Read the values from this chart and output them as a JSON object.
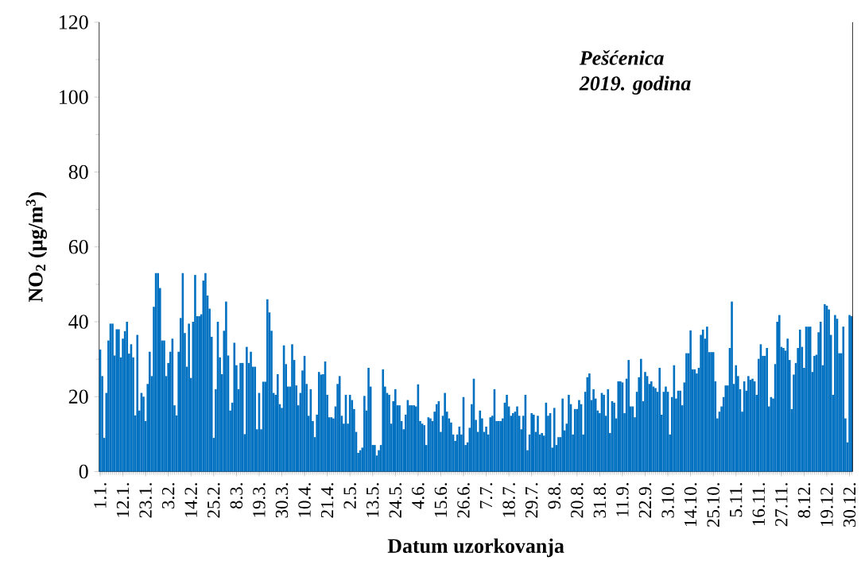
{
  "chart_data": {
    "type": "bar",
    "ylabel": "NO$_{2}$ (µg/m$^{3}$)",
    "xlabel": "Datum uzorkovanja",
    "annotations": [
      "Pešćenica",
      "2019. godina"
    ],
    "color": "#0070c0",
    "ylim": [
      0,
      120
    ],
    "yticks": [
      0,
      20,
      40,
      60,
      80,
      100,
      120
    ],
    "categories": [
      "1.1.",
      null,
      null,
      null,
      null,
      null,
      null,
      null,
      null,
      null,
      null,
      "12.1.",
      null,
      null,
      null,
      null,
      null,
      null,
      null,
      null,
      null,
      null,
      "23.1.",
      null,
      null,
      null,
      null,
      null,
      null,
      null,
      null,
      null,
      null,
      "3.2.",
      null,
      null,
      null,
      null,
      null,
      null,
      null,
      null,
      null,
      null,
      "14.2.",
      null,
      null,
      null,
      null,
      null,
      null,
      null,
      null,
      null,
      null,
      "25.2.",
      null,
      null,
      null,
      null,
      null,
      null,
      null,
      null,
      null,
      null,
      "8.3.",
      null,
      null,
      null,
      null,
      null,
      null,
      null,
      null,
      null,
      null,
      "19.3.",
      null,
      null,
      null,
      null,
      null,
      null,
      null,
      null,
      null,
      null,
      "30.3.",
      null,
      null,
      null,
      null,
      null,
      null,
      null,
      null,
      null,
      null,
      "10.4.",
      null,
      null,
      null,
      null,
      null,
      null,
      null,
      null,
      null,
      null,
      "21.4.",
      null,
      null,
      null,
      null,
      null,
      null,
      null,
      null,
      null,
      null,
      "2.5.",
      null,
      null,
      null,
      null,
      null,
      null,
      null,
      null,
      null,
      null,
      "13.5.",
      null,
      null,
      null,
      null,
      null,
      null,
      null,
      null,
      null,
      null,
      "24.5.",
      null,
      null,
      null,
      null,
      null,
      null,
      null,
      null,
      null,
      null,
      "4.6.",
      null,
      null,
      null,
      null,
      null,
      null,
      null,
      null,
      null,
      null,
      "15.6.",
      null,
      null,
      null,
      null,
      null,
      null,
      null,
      null,
      null,
      null,
      "26.6.",
      null,
      null,
      null,
      null,
      null,
      null,
      null,
      null,
      null,
      null,
      "7.7.",
      null,
      null,
      null,
      null,
      null,
      null,
      null,
      null,
      null,
      null,
      "18.7.",
      null,
      null,
      null,
      null,
      null,
      null,
      null,
      null,
      null,
      null,
      "29.7.",
      null,
      null,
      null,
      null,
      null,
      null,
      null,
      null,
      null,
      null,
      "9.8.",
      null,
      null,
      null,
      null,
      null,
      null,
      null,
      null,
      null,
      null,
      "20.8.",
      null,
      null,
      null,
      null,
      null,
      null,
      null,
      null,
      null,
      null,
      "31.8.",
      null,
      null,
      null,
      null,
      null,
      null,
      null,
      null,
      null,
      null,
      "11.9.",
      null,
      null,
      null,
      null,
      null,
      null,
      null,
      null,
      null,
      null,
      "22.9.",
      null,
      null,
      null,
      null,
      null,
      null,
      null,
      null,
      null,
      null,
      "3.10.",
      null,
      null,
      null,
      null,
      null,
      null,
      null,
      null,
      null,
      null,
      "14.10.",
      null,
      null,
      null,
      null,
      null,
      null,
      null,
      null,
      null,
      null,
      "25.10.",
      null,
      null,
      null,
      null,
      null,
      null,
      null,
      null,
      null,
      null,
      "5.11.",
      null,
      null,
      null,
      null,
      null,
      null,
      null,
      null,
      null,
      null,
      "16.11.",
      null,
      null,
      null,
      null,
      null,
      null,
      null,
      null,
      null,
      null,
      "27.11.",
      null,
      null,
      null,
      null,
      null,
      null,
      null,
      null,
      null,
      null,
      "8.12.",
      null,
      null,
      null,
      null,
      null,
      null,
      null,
      null,
      null,
      null,
      "19.12.",
      null,
      null,
      null,
      null,
      null,
      null,
      null,
      null,
      null,
      null,
      "30.12.",
      null
    ],
    "values": [
      32.6,
      25.5,
      9,
      21,
      35,
      39.5,
      39.5,
      31,
      38,
      38,
      30.5,
      35.5,
      37.5,
      40,
      31.5,
      34,
      30.5,
      15,
      36.5,
      16.3,
      21,
      20,
      13.5,
      23.4,
      32,
      25.5,
      44,
      53,
      53,
      49,
      35,
      35,
      25.5,
      29,
      32,
      35.5,
      17.7,
      15,
      32,
      41,
      53,
      37,
      28,
      39.5,
      25,
      40,
      52.5,
      41.5,
      41.5,
      42,
      51,
      53,
      47,
      43.5,
      36,
      9,
      22,
      40,
      30.5,
      26,
      37.6,
      45.4,
      31,
      16.3,
      18.4,
      34.4,
      28.4,
      22,
      29,
      29,
      10,
      33.3,
      29,
      32,
      28,
      28,
      11.3,
      21,
      11.3,
      24,
      24,
      46,
      42.5,
      37.6,
      21,
      20.5,
      26,
      18,
      17,
      33.7,
      28.7,
      22.7,
      22.7,
      34,
      29.8,
      23,
      17.7,
      21,
      27,
      30.9,
      23.4,
      14.9,
      22,
      13.5,
      9.2,
      15.2,
      26.6,
      25.9,
      26,
      29.4,
      20.5,
      14.5,
      14.5,
      14.2,
      17.4,
      23.4,
      25.5,
      14.9,
      12.8,
      20.5,
      12.8,
      20.5,
      19.1,
      16.7,
      10.6,
      5,
      5.7,
      6.4,
      20.2,
      16.3,
      27.7,
      22.7,
      7.1,
      7.1,
      4.3,
      5.7,
      7.1,
      27.3,
      22.7,
      21,
      20.5,
      12.8,
      18.8,
      22,
      17.7,
      17.7,
      13.5,
      11.3,
      15.2,
      19.1,
      17.7,
      17.7,
      17.7,
      17.4,
      23.3,
      13.5,
      12.8,
      12.4,
      7.1,
      14.5,
      14.2,
      13.5,
      16,
      18,
      18.8,
      10.6,
      14.9,
      21,
      16,
      14.2,
      13.1,
      9.9,
      8.2,
      9.9,
      12,
      9.9,
      19.9,
      7.1,
      7.8,
      11.7,
      18,
      24.8,
      13.8,
      10.6,
      16.3,
      14.2,
      10.6,
      12,
      9.9,
      14.5,
      14.9,
      22,
      13.5,
      13.5,
      13.5,
      14.2,
      18.4,
      20.5,
      17.4,
      14.9,
      15.6,
      16,
      17.4,
      14.9,
      11.3,
      14.9,
      20.5,
      5.7,
      9.9,
      15.6,
      15.2,
      10.6,
      14.9,
      9.9,
      10.3,
      9.6,
      18.4,
      14.9,
      15.6,
      6.4,
      17,
      7.1,
      9.2,
      9.2,
      19.5,
      11,
      12.8,
      20.5,
      18,
      9.9,
      16.7,
      16.7,
      19.1,
      18,
      9.9,
      21.3,
      25.2,
      26.2,
      19.1,
      22,
      19.5,
      16.3,
      15.6,
      21,
      20.5,
      14.9,
      22,
      10.3,
      18.8,
      18.4,
      14.2,
      24.1,
      24.1,
      23.8,
      15.6,
      24.8,
      29.8,
      17.4,
      17.4,
      14.5,
      21.3,
      25.2,
      30.1,
      18.8,
      26.6,
      25.5,
      23.4,
      24.1,
      22.7,
      22.3,
      21.3,
      27.7,
      15.2,
      21.3,
      22.7,
      21.3,
      9.9,
      19.9,
      28.4,
      19.5,
      21.6,
      21.6,
      17.7,
      23.8,
      31.6,
      31.6,
      37.7,
      27.3,
      27.3,
      26.2,
      27.7,
      36.5,
      37.9,
      35.5,
      38.7,
      31.9,
      31.9,
      31.9,
      24.1,
      14.2,
      16,
      17.4,
      19.9,
      23,
      23,
      33,
      45.4,
      23.4,
      28.4,
      25.5,
      22,
      16,
      24.1,
      21.6,
      25.5,
      24.5,
      24.8,
      24.1,
      20.5,
      30.1,
      34,
      30.9,
      30.9,
      33,
      17.4,
      19.9,
      19.5,
      28.7,
      40,
      41.8,
      33.3,
      33,
      32.3,
      35.5,
      29.8,
      16.7,
      25.9,
      29,
      33,
      37.9,
      33.3,
      27.7,
      38.7,
      38.7,
      38.7,
      26.6,
      30.9,
      31.2,
      37.2,
      40,
      28.4,
      44.7,
      44.3,
      43.3,
      36.5,
      20.5,
      41.8,
      40.8,
      31.6,
      31.6,
      38.7,
      14.2,
      7.8,
      41.8,
      41.5
    ]
  }
}
